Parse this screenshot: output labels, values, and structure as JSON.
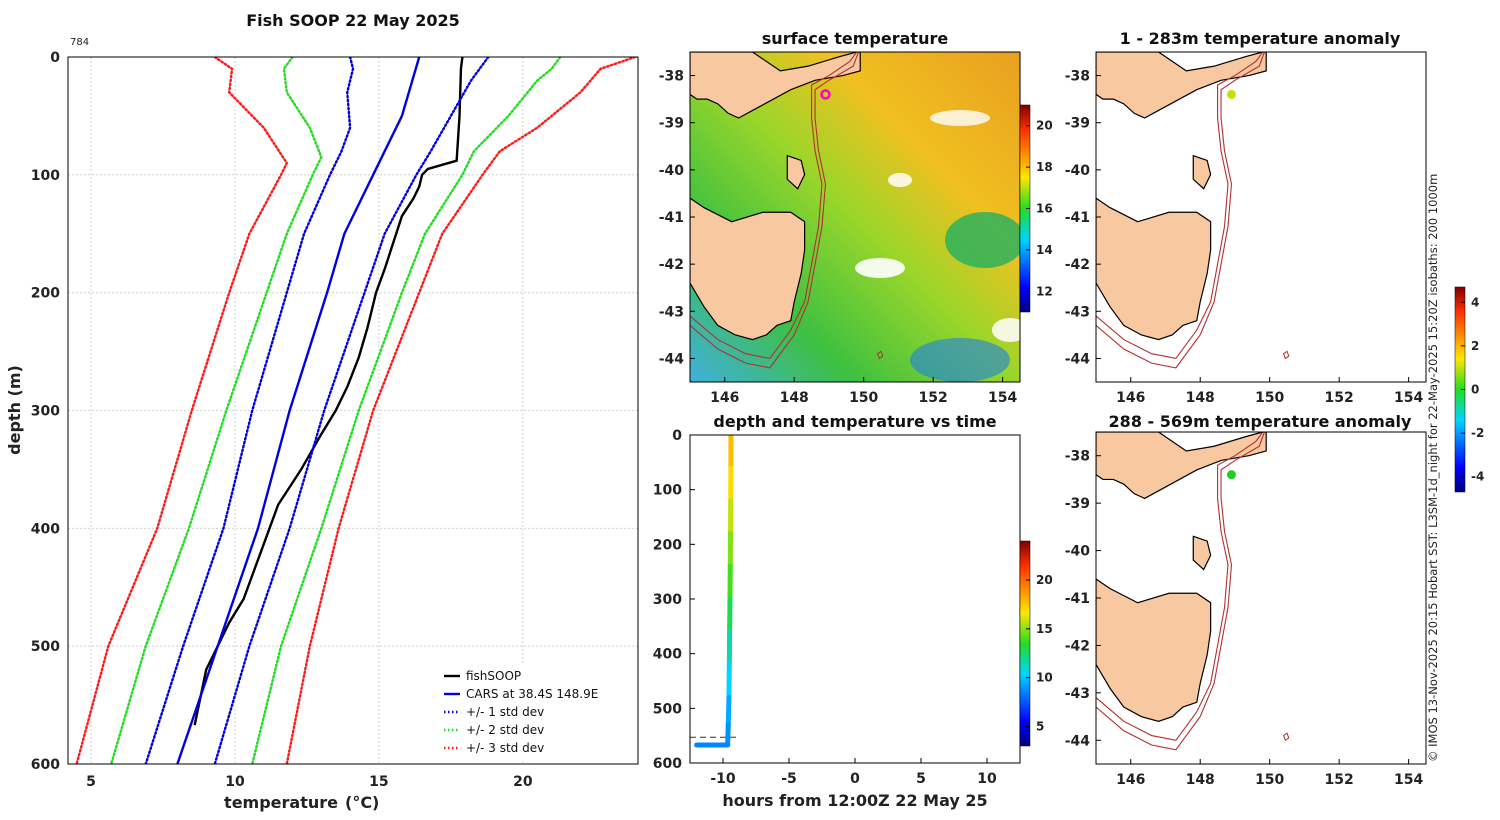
{
  "chart_data": [
    {
      "type": "line",
      "title": "Fish SOOP 22 May 2025",
      "corner_label": "784",
      "xlabel": "temperature",
      "xlabel_unit": "(°C)",
      "ylabel": "depth (m)",
      "xlim": [
        4.2,
        24.0
      ],
      "ylim": [
        600,
        0
      ],
      "xticks": [
        5,
        10,
        15,
        20
      ],
      "yticks": [
        0,
        100,
        200,
        300,
        400,
        500,
        600
      ],
      "grid": true,
      "legend_position": "bottom-right",
      "series": [
        {
          "name": "fishSOOP",
          "color": "#000000",
          "style": "solid",
          "depth": [
            0,
            10,
            50,
            88,
            95,
            100,
            110,
            120,
            135,
            150,
            165,
            180,
            200,
            230,
            255,
            280,
            300,
            320,
            350,
            380,
            420,
            460,
            480,
            500,
            520,
            567
          ],
          "temp": [
            17.9,
            17.85,
            17.8,
            17.7,
            16.7,
            16.5,
            16.4,
            16.2,
            15.8,
            15.6,
            15.4,
            15.2,
            14.9,
            14.6,
            14.3,
            13.9,
            13.5,
            13.0,
            12.3,
            11.5,
            10.9,
            10.3,
            9.8,
            9.4,
            9.0,
            8.6
          ]
        },
        {
          "name": "CARS at 38.4S 148.9E",
          "color": "#0000e0",
          "style": "solid",
          "depth": [
            0,
            50,
            100,
            150,
            200,
            300,
            400,
            500,
            600
          ],
          "temp": [
            16.4,
            15.8,
            14.8,
            13.8,
            13.2,
            11.9,
            10.8,
            9.4,
            8.0
          ]
        },
        {
          "name": "+/- 1 std dev",
          "color": "#0000e0",
          "style": "dotted",
          "depth": [
            0,
            20,
            50,
            80,
            100,
            150,
            200,
            300,
            400,
            500,
            600
          ],
          "temp": [
            18.8,
            18.2,
            17.5,
            16.8,
            16.3,
            15.2,
            14.5,
            13.1,
            11.9,
            10.5,
            9.3
          ]
        },
        {
          "name": "+/- 1 std dev",
          "color": "#0000e0",
          "style": "dotted",
          "depth": [
            0,
            10,
            30,
            60,
            80,
            100,
            150,
            200,
            300,
            400,
            500,
            600
          ],
          "temp": [
            14.0,
            14.1,
            13.9,
            14.0,
            13.7,
            13.3,
            12.4,
            11.8,
            10.6,
            9.6,
            8.2,
            6.9
          ]
        },
        {
          "name": "+/- 2 std dev",
          "color": "#22dd22",
          "style": "dotted",
          "depth": [
            0,
            10,
            20,
            50,
            80,
            100,
            150,
            200,
            300,
            400,
            500,
            600
          ],
          "temp": [
            21.3,
            21.0,
            20.5,
            19.5,
            18.3,
            17.9,
            16.6,
            15.8,
            14.3,
            13.0,
            11.6,
            10.6
          ]
        },
        {
          "name": "+/- 2 std dev",
          "color": "#22dd22",
          "style": "dotted",
          "depth": [
            0,
            10,
            30,
            60,
            85,
            100,
            150,
            200,
            300,
            400,
            500,
            600
          ],
          "temp": [
            12.0,
            11.7,
            11.8,
            12.6,
            13.0,
            12.7,
            11.8,
            11.1,
            9.7,
            8.4,
            6.9,
            5.7
          ]
        },
        {
          "name": "+/- 3 std dev",
          "color": "#ff1a1a",
          "style": "dotted",
          "depth": [
            0,
            10,
            30,
            60,
            80,
            100,
            150,
            200,
            300,
            400,
            500,
            600
          ],
          "temp": [
            23.9,
            22.7,
            22.0,
            20.5,
            19.2,
            18.6,
            17.2,
            16.4,
            14.8,
            13.6,
            12.6,
            11.8
          ]
        },
        {
          "name": "+/- 3 std dev",
          "color": "#ff1a1a",
          "style": "dotted",
          "depth": [
            0,
            10,
            30,
            60,
            90,
            100,
            150,
            200,
            300,
            400,
            500,
            600
          ],
          "temp": [
            9.3,
            9.9,
            9.8,
            11.0,
            11.8,
            11.6,
            10.5,
            9.8,
            8.5,
            7.3,
            5.6,
            4.5
          ]
        }
      ],
      "legend": [
        {
          "label": "fishSOOP",
          "color": "#000000",
          "style": "solid"
        },
        {
          "label": "CARS at 38.4S 148.9E",
          "color": "#0000e0",
          "style": "solid"
        },
        {
          "label": "+/- 1 std dev",
          "color": "#0000e0",
          "style": "dotted"
        },
        {
          "label": "+/- 2 std dev",
          "color": "#22dd22",
          "style": "dotted"
        },
        {
          "label": "+/- 3 std dev",
          "color": "#ff1a1a",
          "style": "dotted"
        }
      ]
    },
    {
      "type": "heatmap",
      "title": "surface temperature",
      "xlim": [
        145,
        154.5
      ],
      "ylim": [
        -44.5,
        -37.5
      ],
      "xticks": [
        146,
        148,
        150,
        152,
        154
      ],
      "yticks": [
        -38,
        -39,
        -40,
        -41,
        -42,
        -43,
        -44
      ],
      "colorbar": {
        "ticks": [
          12,
          14,
          16,
          18,
          20
        ],
        "range": [
          11,
          21
        ]
      },
      "marker": {
        "lon": 148.9,
        "lat": -38.4,
        "color": "#ff00cc"
      }
    },
    {
      "type": "scatter",
      "title": "depth and temperature vs time",
      "xlabel": "hours from 12:00Z 22 May 25",
      "xlim": [
        -12.5,
        12.5
      ],
      "ylim": [
        600,
        0
      ],
      "xticks": [
        -10,
        -5,
        0,
        5,
        10
      ],
      "yticks": [
        0,
        100,
        200,
        300,
        400,
        500,
        600
      ],
      "colorbar": {
        "ticks": [
          5,
          10,
          15,
          20
        ],
        "range": [
          3,
          24
        ]
      },
      "dashed_depth": 553,
      "points": [
        {
          "hour": -9.4,
          "depth": 0,
          "temp": 17.9
        },
        {
          "hour": -9.4,
          "depth": 60,
          "temp": 17.7
        },
        {
          "hour": -9.42,
          "depth": 120,
          "temp": 16.3
        },
        {
          "hour": -9.43,
          "depth": 180,
          "temp": 15.2
        },
        {
          "hour": -9.45,
          "depth": 240,
          "temp": 14.5
        },
        {
          "hour": -9.47,
          "depth": 300,
          "temp": 13.5
        },
        {
          "hour": -9.5,
          "depth": 360,
          "temp": 12.2
        },
        {
          "hour": -9.52,
          "depth": 420,
          "temp": 10.9
        },
        {
          "hour": -9.55,
          "depth": 480,
          "temp": 9.8
        },
        {
          "hour": -9.6,
          "depth": 530,
          "temp": 9.0
        },
        {
          "hour": -9.65,
          "depth": 567,
          "temp": 8.6
        },
        {
          "hour": -10.5,
          "depth": 567,
          "temp": 8.6
        },
        {
          "hour": -12.0,
          "depth": 567,
          "temp": 8.6
        }
      ]
    },
    {
      "type": "heatmap",
      "title": "1 - 283m temperature anomaly",
      "xlim": [
        145,
        154.5
      ],
      "ylim": [
        -44.5,
        -37.5
      ],
      "xticks": [
        146,
        148,
        150,
        152,
        154
      ],
      "yticks": [
        -38,
        -39,
        -40,
        -41,
        -42,
        -43,
        -44
      ],
      "marker": {
        "lon": 148.9,
        "lat": -38.4,
        "color": "#c8e000"
      }
    },
    {
      "type": "heatmap",
      "title": "288 - 569m temperature anomaly",
      "xlim": [
        145,
        154.5
      ],
      "ylim": [
        -44.5,
        -37.5
      ],
      "xticks": [
        146,
        148,
        150,
        152,
        154
      ],
      "yticks": [
        -38,
        -39,
        -40,
        -41,
        -42,
        -43,
        -44
      ],
      "marker": {
        "lon": 148.9,
        "lat": -38.4,
        "color": "#22cc22"
      }
    }
  ],
  "anomaly_colorbar": {
    "ticks": [
      -4,
      -2,
      0,
      2,
      4
    ],
    "range": [
      -4.7,
      4.7
    ]
  },
  "credit": "© IMOS 13-Nov-2025 20:15 Hobart SST: L3SM-1d_night for 22-May-2025 15:20Z isobaths: 200  1000m",
  "colors": {
    "land": "#f8c8a0",
    "isobath": "#b03030",
    "grid": "#c8c8c8"
  }
}
